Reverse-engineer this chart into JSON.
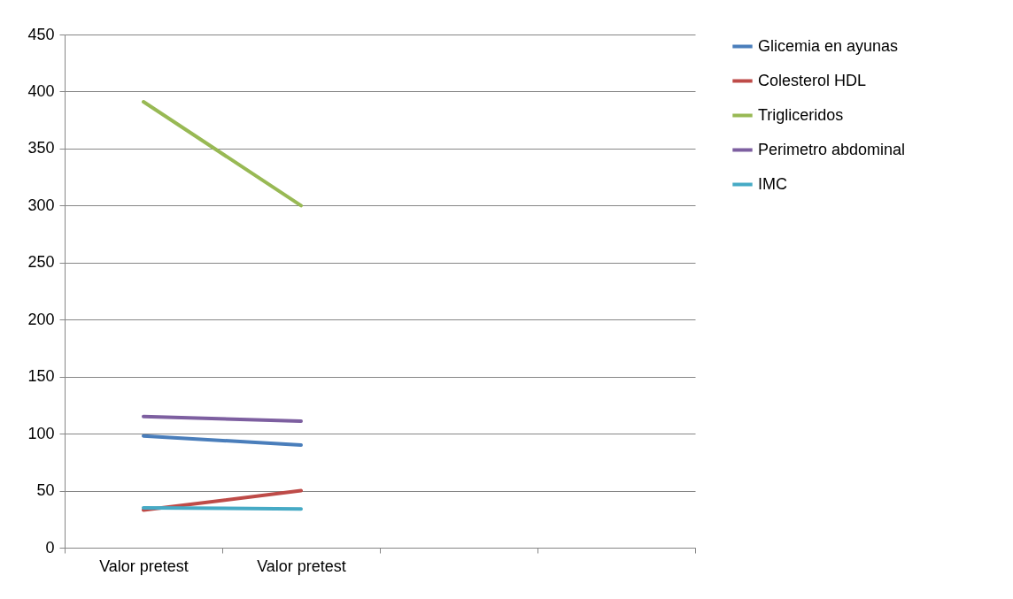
{
  "chart_data": {
    "type": "line",
    "categories": [
      "Valor pretest",
      "Valor pretest",
      null,
      null
    ],
    "ylim": [
      0,
      450
    ],
    "yticks": [
      0,
      50,
      100,
      150,
      200,
      250,
      300,
      350,
      400,
      450
    ],
    "grid": "y",
    "legend": "right",
    "series": [
      {
        "name": "Glicemia en ayunas",
        "color": "#4a7ebb",
        "values": [
          98,
          90,
          null,
          null
        ]
      },
      {
        "name": "Colesterol HDL",
        "color": "#be4b48",
        "values": [
          33,
          50,
          null,
          null
        ]
      },
      {
        "name": "Trigliceridos",
        "color": "#98b954",
        "values": [
          391,
          300,
          null,
          null
        ]
      },
      {
        "name": "Perimetro abdominal",
        "color": "#7d5fa0",
        "values": [
          115,
          111,
          null,
          null
        ]
      },
      {
        "name": "IMC",
        "color": "#46aac5",
        "values": [
          35,
          34,
          null,
          null
        ]
      }
    ]
  }
}
